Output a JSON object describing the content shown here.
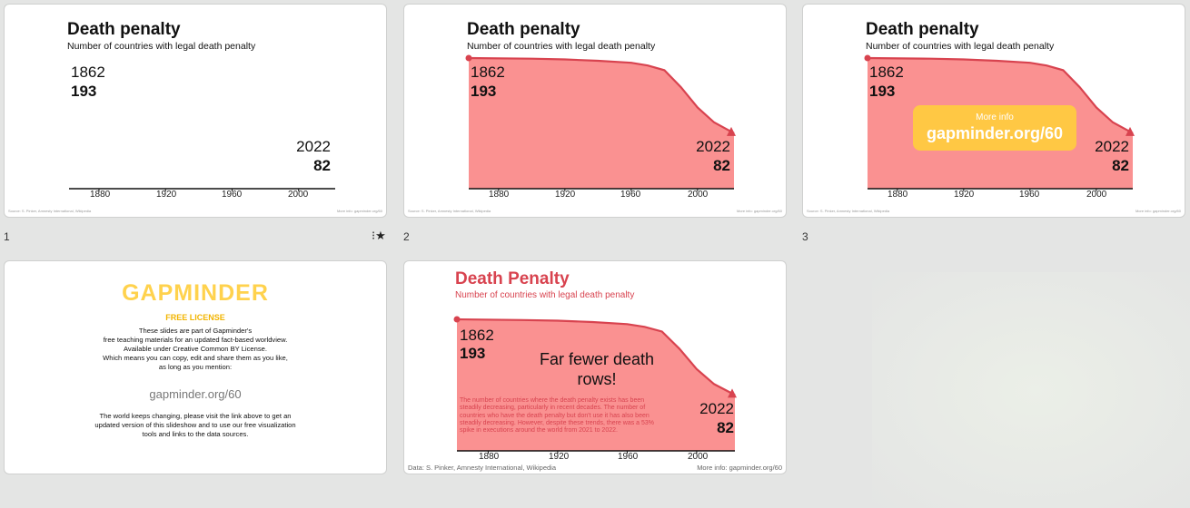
{
  "slides": [
    {
      "number": "1",
      "title": "Death penalty",
      "subtitle": "Number of countries with legal death penalty",
      "start_year": "1862",
      "start_value": "193",
      "end_year": "2022",
      "end_value": "82",
      "ticks": [
        "1880",
        "1920",
        "1960",
        "2000"
      ],
      "source": "Source: S. Pinker, Amnesty International, Wikipedia",
      "more_info": "More info: gapminder.org/60",
      "starred": true
    },
    {
      "number": "2",
      "title": "Death penalty",
      "subtitle": "Number of countries with legal death penalty",
      "start_year": "1862",
      "start_value": "193",
      "end_year": "2022",
      "end_value": "82",
      "ticks": [
        "1880",
        "1920",
        "1960",
        "2000"
      ],
      "source": "Source: S. Pinker, Amnesty International, Wikipedia",
      "more_info": "More info: gapminder.org/60"
    },
    {
      "number": "3",
      "title": "Death penalty",
      "subtitle": "Number of countries with legal death penalty",
      "start_year": "1862",
      "start_value": "193",
      "end_year": "2022",
      "end_value": "82",
      "ticks": [
        "1880",
        "1920",
        "1960",
        "2000"
      ],
      "more_box_label": "More info",
      "more_box_url": "gapminder.org/60",
      "source": "Source: S. Pinker, Amnesty International, Wikipedia",
      "more_info": "More info: gapminder.org/60"
    },
    {
      "logo": "GAPMINDER",
      "license_title": "FREE LICENSE",
      "license_lines": [
        "These slides are part of Gapminder's",
        "free teaching materials for an updated fact-based worldview.",
        "Available under Creative Common BY License.",
        "Which means you can copy, edit and share them as you like,",
        "as long as you mention:"
      ],
      "license_url": "gapminder.org/60",
      "update_lines": [
        "The world keeps changing, please visit the link above to get an",
        "updated version of this slideshow and to use our free visualization",
        "tools and links to the data sources."
      ]
    },
    {
      "title": "Death Penalty",
      "subtitle": "Number of countries with legal death penalty",
      "start_year": "1862",
      "start_value": "193",
      "end_year": "2022",
      "end_value": "82",
      "callout": "Far fewer death rows!",
      "paragraph": "The number of countries where the death penalty exists has been steadily decreasing, particularly in recent decades. The number of countries who have the death penalty but don't use it has also been steadily decreasing. However, despite these trends, there was a 53% spike in executions around the world from 2021 to 2022.",
      "ticks": [
        "1880",
        "1920",
        "1960",
        "2000"
      ],
      "source": "Data: S. Pinker, Amnesty International, Wikipedia",
      "more_info": "More info: gapminder.org/60"
    }
  ],
  "chart_data": {
    "type": "area",
    "title": "Death penalty",
    "subtitle": "Number of countries with legal death penalty",
    "x": [
      1862,
      1900,
      1920,
      1940,
      1960,
      1970,
      1980,
      1990,
      2000,
      2010,
      2022
    ],
    "series": [
      {
        "values": [
          193,
          192,
          191,
          189,
          186,
          182,
          175,
          150,
          120,
          98,
          82
        ]
      }
    ],
    "xticks": [
      1880,
      1920,
      1960,
      2000
    ],
    "xlim": [
      1862,
      2022
    ],
    "ylim": [
      0,
      193
    ],
    "fill_color": "#fa9191",
    "line_color": "#d8434f"
  }
}
